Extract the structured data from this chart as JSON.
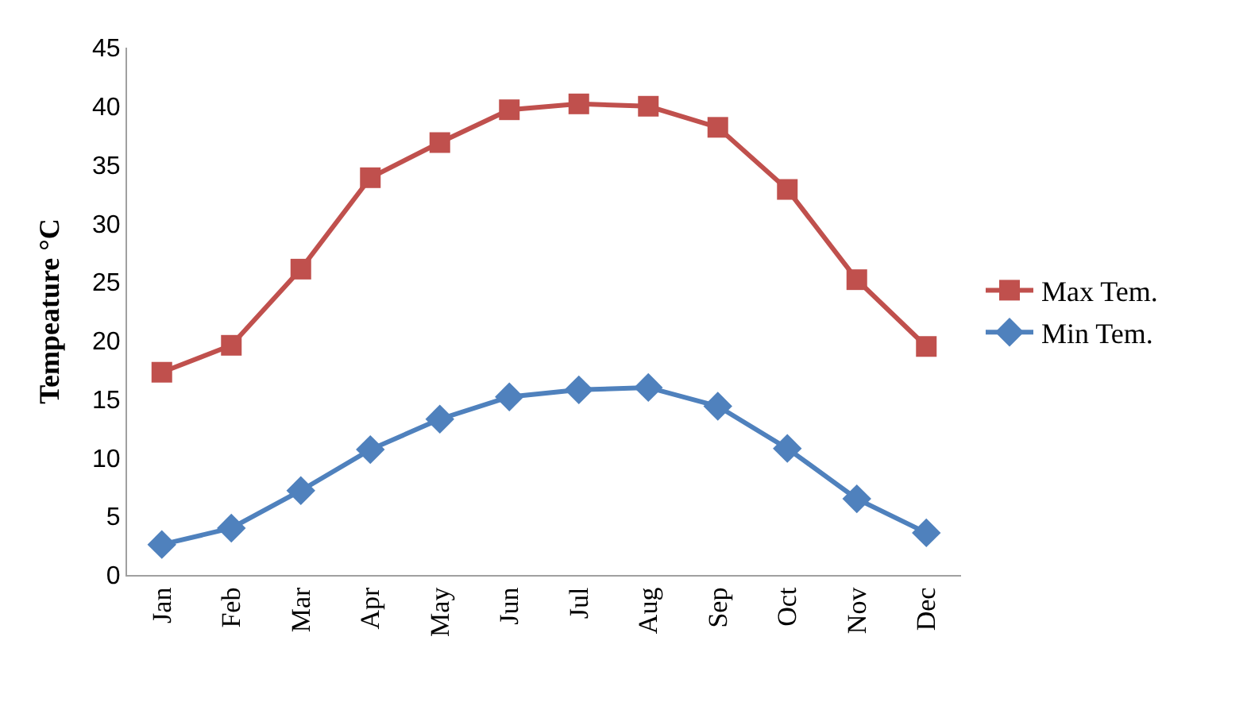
{
  "chart_data": {
    "type": "line",
    "ylabel": "Tempeature °C",
    "categories": [
      "Jan",
      "Feb",
      "Mar",
      "Apr",
      "May",
      "Jun",
      "Jul",
      "Aug",
      "Sep",
      "Oct",
      "Nov",
      "Dec"
    ],
    "series": [
      {
        "name": "Max Tem.",
        "color": "#c0504d",
        "marker": "square",
        "values": [
          17.3,
          19.6,
          26.1,
          33.9,
          36.9,
          39.7,
          40.2,
          40.0,
          38.2,
          32.9,
          25.2,
          19.5
        ]
      },
      {
        "name": "Min Tem.",
        "color": "#4f81bd",
        "marker": "diamond",
        "values": [
          2.6,
          4.0,
          7.2,
          10.7,
          13.3,
          15.2,
          15.8,
          16.0,
          14.4,
          10.8,
          6.5,
          3.6
        ]
      }
    ],
    "ylim": [
      0,
      45
    ],
    "yticks": [
      0,
      5,
      10,
      15,
      20,
      25,
      30,
      35,
      40,
      45
    ],
    "grid": false,
    "legend": "right",
    "line_style": "solid"
  }
}
